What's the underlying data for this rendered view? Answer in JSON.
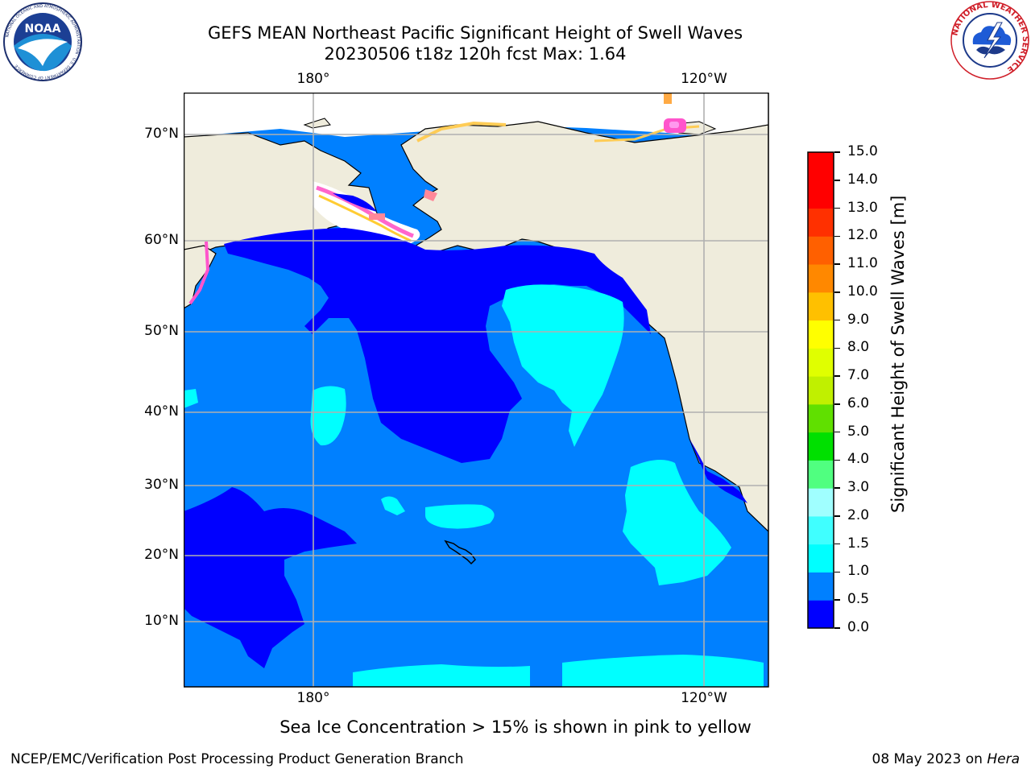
{
  "title": {
    "line1": "GEFS MEAN Northeast Pacific Significant Height of Swell Waves",
    "line2": "20230506 t18z 120h fcst   Max: 1.64"
  },
  "logos": {
    "noaa": {
      "text": "NOAA",
      "ring_text": "NATIONAL OCEANIC AND ATMOSPHERIC ADMINISTRATION · U.S. DEPARTMENT OF COMMERCE"
    },
    "nws": {
      "ring_text": "NATIONAL WEATHER SERVICE"
    }
  },
  "map": {
    "lon_labels": [
      "180°",
      "120°W"
    ],
    "lat_labels": [
      "70°N",
      "60°N",
      "50°N",
      "40°N",
      "30°N",
      "20°N",
      "10°N"
    ],
    "colors": {
      "ocean_base": "#0080ff",
      "ocean_low": "#0000ff",
      "ocean_mid": "#00ffff",
      "land": "#efecdc",
      "ice_white": "#ffffff",
      "gridline": "#b0b0b0"
    }
  },
  "colorbar": {
    "title": "Significant Height of Swell Waves [m]",
    "ticks": [
      "0.0",
      "0.5",
      "1.0",
      "1.5",
      "2.0",
      "3.0",
      "4.0",
      "5.0",
      "6.0",
      "7.0",
      "8.0",
      "9.0",
      "10.0",
      "11.0",
      "12.0",
      "13.0",
      "14.0",
      "15.0"
    ],
    "colors": [
      "#0000ff",
      "#0080ff",
      "#00ffff",
      "#40ffff",
      "#a0ffff",
      "#50ff80",
      "#00e000",
      "#60e000",
      "#c0f000",
      "#e0ff00",
      "#ffff00",
      "#ffc000",
      "#ff8800",
      "#ff6000",
      "#ff3000",
      "#ff0000",
      "#ff0000"
    ]
  },
  "note": "Sea Ice Concentration > 15% is shown in pink to yellow",
  "footer": {
    "left": "NCEP/EMC/Verification Post Processing Product Generation Branch",
    "right_prefix": "08 May 2023 on ",
    "right_host": "Hera"
  }
}
